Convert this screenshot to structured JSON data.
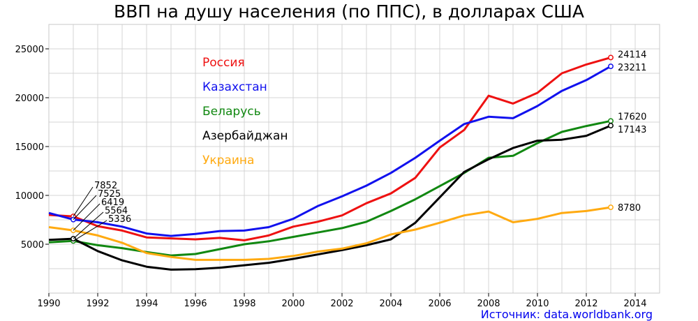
{
  "chart_data": {
    "type": "line",
    "title": "ВВП на душу населения (по ППС), в долларах США",
    "xlabel": "",
    "ylabel": "",
    "xlim": [
      1990,
      2015
    ],
    "ylim": [
      0,
      27500
    ],
    "grid": true,
    "legend_position": "top-center",
    "x_ticks": [
      "1990",
      "1992",
      "1994",
      "1996",
      "1998",
      "2000",
      "2002",
      "2004",
      "2006",
      "2008",
      "2010",
      "2012",
      "2014"
    ],
    "y_ticks": [
      "5000",
      "10000",
      "15000",
      "20000",
      "25000"
    ],
    "x": [
      1990,
      1991,
      1992,
      1993,
      1994,
      1995,
      1996,
      1997,
      1998,
      1999,
      2000,
      2001,
      2002,
      2003,
      2004,
      2005,
      2006,
      2007,
      2008,
      2009,
      2010,
      2011,
      2012,
      2013
    ],
    "series": [
      {
        "name": "Россия",
        "color": "#ee1111",
        "values": [
          8000,
          7852,
          6850,
          6400,
          5700,
          5600,
          5500,
          5650,
          5400,
          5900,
          6800,
          7300,
          7950,
          9200,
          10200,
          11800,
          14900,
          16700,
          20200,
          19400,
          20500,
          22500,
          23400,
          24114
        ]
      },
      {
        "name": "Казахстан",
        "color": "#1111ee",
        "values": [
          8200,
          7525,
          7250,
          6800,
          6100,
          5850,
          6050,
          6350,
          6400,
          6750,
          7600,
          8900,
          9900,
          11000,
          12300,
          13850,
          15600,
          17300,
          18050,
          17900,
          19150,
          20700,
          21800,
          23211
        ]
      },
      {
        "name": "Беларусь",
        "color": "#118811",
        "values": [
          5200,
          5336,
          4900,
          4600,
          4200,
          3850,
          4000,
          4500,
          5000,
          5300,
          5750,
          6200,
          6650,
          7300,
          8400,
          9600,
          10950,
          12300,
          13850,
          14050,
          15350,
          16500,
          17100,
          17620
        ]
      },
      {
        "name": "Азербайджан",
        "color": "#000000",
        "values": [
          5450,
          5564,
          4300,
          3350,
          2700,
          2400,
          2450,
          2600,
          2850,
          3100,
          3500,
          3950,
          4400,
          4900,
          5500,
          7200,
          9800,
          12400,
          13700,
          14850,
          15600,
          15700,
          16100,
          17143
        ]
      },
      {
        "name": "Украина",
        "color": "#ffaa11",
        "values": [
          6750,
          6419,
          5900,
          5150,
          4100,
          3700,
          3400,
          3400,
          3400,
          3500,
          3800,
          4250,
          4550,
          5100,
          6000,
          6500,
          7200,
          7950,
          8350,
          7250,
          7600,
          8200,
          8400,
          8780
        ]
      }
    ],
    "annotations": {
      "start_values": [
        "7852",
        "7525",
        "6419",
        "5564",
        "5336"
      ],
      "end_values": [
        "24114",
        "23211",
        "17620",
        "17143",
        "8780"
      ]
    },
    "source": "Источник: data.worldbank.org"
  }
}
